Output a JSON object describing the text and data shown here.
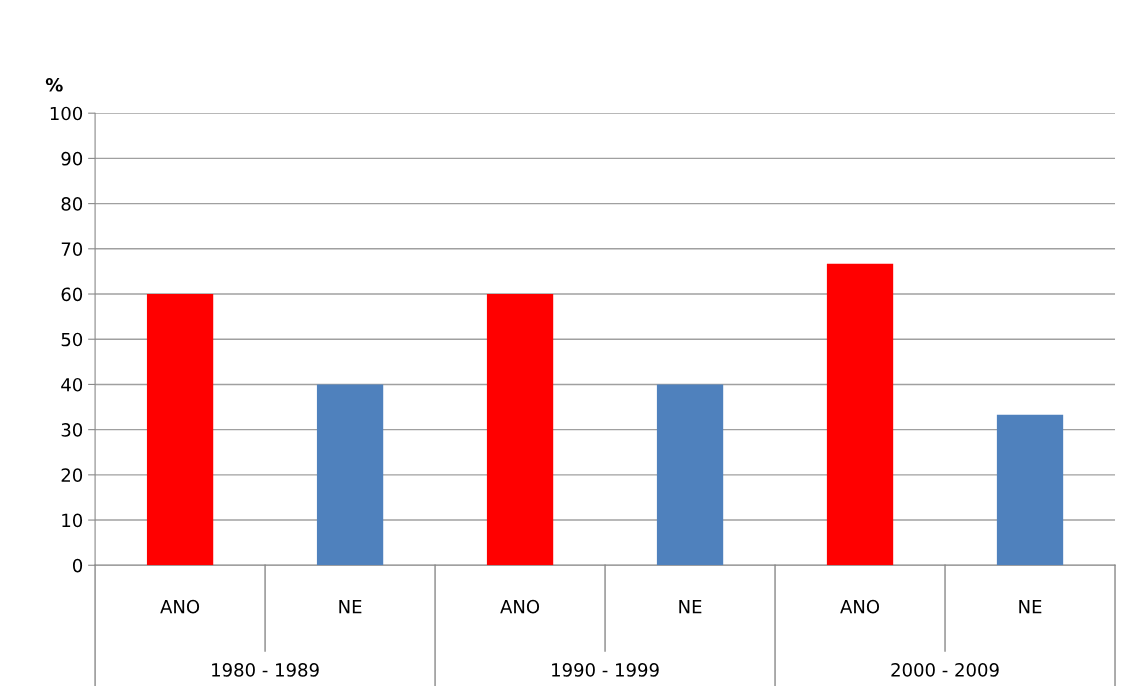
{
  "chart_data": {
    "type": "bar",
    "ylabel": "%",
    "categories": [
      "ANO",
      "NE",
      "ANO",
      "NE",
      "ANO",
      "NE"
    ],
    "values": [
      60,
      40,
      60,
      40,
      66.7,
      33.3
    ],
    "colors": [
      "#ff0000",
      "#4f81bd",
      "#ff0000",
      "#4f81bd",
      "#ff0000",
      "#4f81bd"
    ],
    "annotations": [
      "1980 - 1989",
      "1990 - 1999",
      "2000 - 2009"
    ],
    "ylim": [
      0,
      100
    ],
    "yticks": [
      0,
      10,
      20,
      30,
      40,
      50,
      60,
      70,
      80,
      90,
      100
    ],
    "grid": "y",
    "legend": false
  }
}
